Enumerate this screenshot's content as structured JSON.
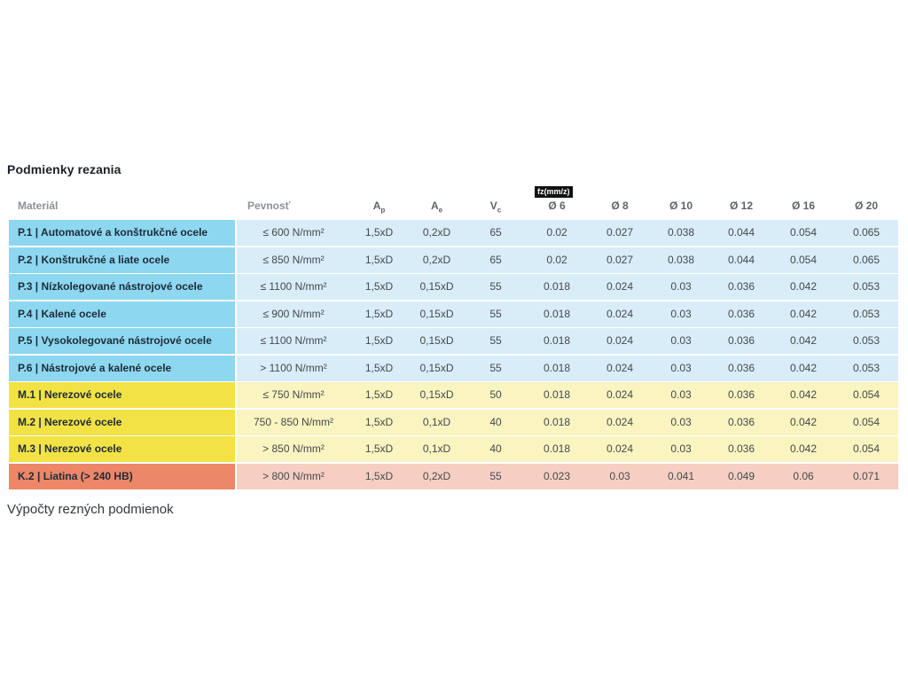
{
  "page": {
    "title": "Podmienky rezania",
    "section_heading": "Výpočty rezných podmienok"
  },
  "table": {
    "fz_badge": "fz(mm/z)",
    "headers": [
      {
        "label": "Materiál"
      },
      {
        "label": "Pevnosť"
      },
      {
        "base": "A",
        "sub": "p"
      },
      {
        "base": "A",
        "sub": "e"
      },
      {
        "base": "V",
        "sub": "c"
      },
      {
        "label": "Ø 6"
      },
      {
        "label": "Ø 8"
      },
      {
        "label": "Ø 10"
      },
      {
        "label": "Ø 12"
      },
      {
        "label": "Ø 16"
      },
      {
        "label": "Ø 20"
      }
    ],
    "rows": [
      {
        "material": "P.1 | Automatové a konštrukčné ocele",
        "group": "blue",
        "values": [
          "≤ 600 N/mm²",
          "1,5xD",
          "0,2xD",
          "65",
          "0.02",
          "0.027",
          "0.038",
          "0.044",
          "0.054",
          "0.065"
        ]
      },
      {
        "material": "P.2 | Konštrukčné a liate ocele",
        "group": "blue",
        "values": [
          "≤ 850 N/mm²",
          "1,5xD",
          "0,2xD",
          "65",
          "0.02",
          "0.027",
          "0.038",
          "0.044",
          "0.054",
          "0.065"
        ]
      },
      {
        "material": "P.3 | Nízkolegované nástrojové ocele",
        "group": "blue",
        "values": [
          "≤ 1100 N/mm²",
          "1,5xD",
          "0,15xD",
          "55",
          "0.018",
          "0.024",
          "0.03",
          "0.036",
          "0.042",
          "0.053"
        ]
      },
      {
        "material": "P.4 | Kalené ocele",
        "group": "blue",
        "values": [
          "≤ 900 N/mm²",
          "1,5xD",
          "0,15xD",
          "55",
          "0.018",
          "0.024",
          "0.03",
          "0.036",
          "0.042",
          "0.053"
        ]
      },
      {
        "material": "P.5 | Vysokolegované nástrojové ocele",
        "group": "blue",
        "values": [
          "≤ 1100 N/mm²",
          "1,5xD",
          "0,15xD",
          "55",
          "0.018",
          "0.024",
          "0.03",
          "0.036",
          "0.042",
          "0.053"
        ]
      },
      {
        "material": "P.6 | Nástrojové a kalené ocele",
        "group": "blue",
        "values": [
          "> 1100 N/mm²",
          "1,5xD",
          "0,15xD",
          "55",
          "0.018",
          "0.024",
          "0.03",
          "0.036",
          "0.042",
          "0.053"
        ]
      },
      {
        "material": "M.1 | Nerezové ocele",
        "group": "yellow",
        "values": [
          "≤ 750 N/mm²",
          "1,5xD",
          "0,15xD",
          "50",
          "0.018",
          "0.024",
          "0.03",
          "0.036",
          "0.042",
          "0.054"
        ]
      },
      {
        "material": "M.2 | Nerezové ocele",
        "group": "yellow",
        "values": [
          "750 - 850 N/mm²",
          "1,5xD",
          "0,1xD",
          "40",
          "0.018",
          "0.024",
          "0.03",
          "0.036",
          "0.042",
          "0.054"
        ]
      },
      {
        "material": "M.3 | Nerezové ocele",
        "group": "yellow",
        "values": [
          "> 850 N/mm²",
          "1,5xD",
          "0,1xD",
          "40",
          "0.018",
          "0.024",
          "0.03",
          "0.036",
          "0.042",
          "0.054"
        ]
      },
      {
        "material": "K.2 | Liatina (> 240 HB)",
        "group": "red",
        "values": [
          "> 800 N/mm²",
          "1,5xD",
          "0,2xD",
          "55",
          "0.023",
          "0.03",
          "0.041",
          "0.049",
          "0.06",
          "0.071"
        ]
      }
    ]
  },
  "colors": {
    "blue_label": "#8ed7f0",
    "blue_data": "#d9edf8",
    "yellow_label": "#f3e245",
    "yellow_data": "#faf4c0",
    "red_label": "#ec8768",
    "red_data": "#f6cfc2"
  }
}
